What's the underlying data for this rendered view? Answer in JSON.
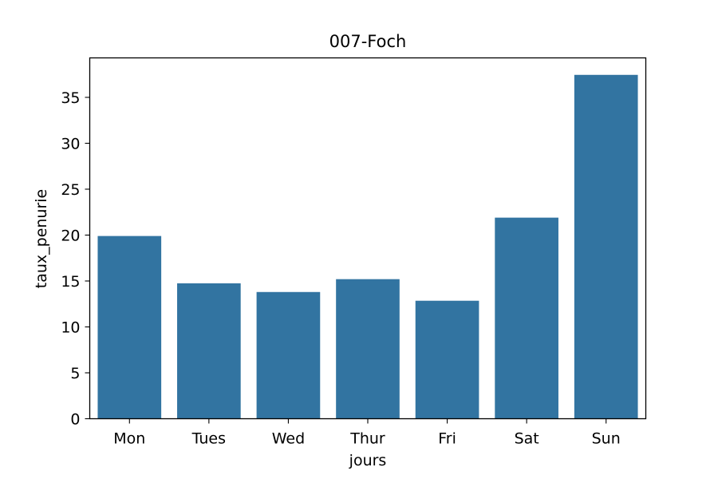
{
  "chart_data": {
    "type": "bar",
    "title": "007-Foch",
    "xlabel": "jours",
    "ylabel": "taux_penurie",
    "categories": [
      "Mon",
      "Tues",
      "Wed",
      "Thur",
      "Fri",
      "Sat",
      "Sun"
    ],
    "values": [
      19.9,
      14.75,
      13.8,
      15.2,
      12.85,
      21.9,
      37.45
    ],
    "ylim": [
      0,
      39.3
    ],
    "yticks": [
      0,
      5,
      10,
      15,
      20,
      25,
      30,
      35
    ],
    "grid": false,
    "bar_color": "#3274a1"
  }
}
